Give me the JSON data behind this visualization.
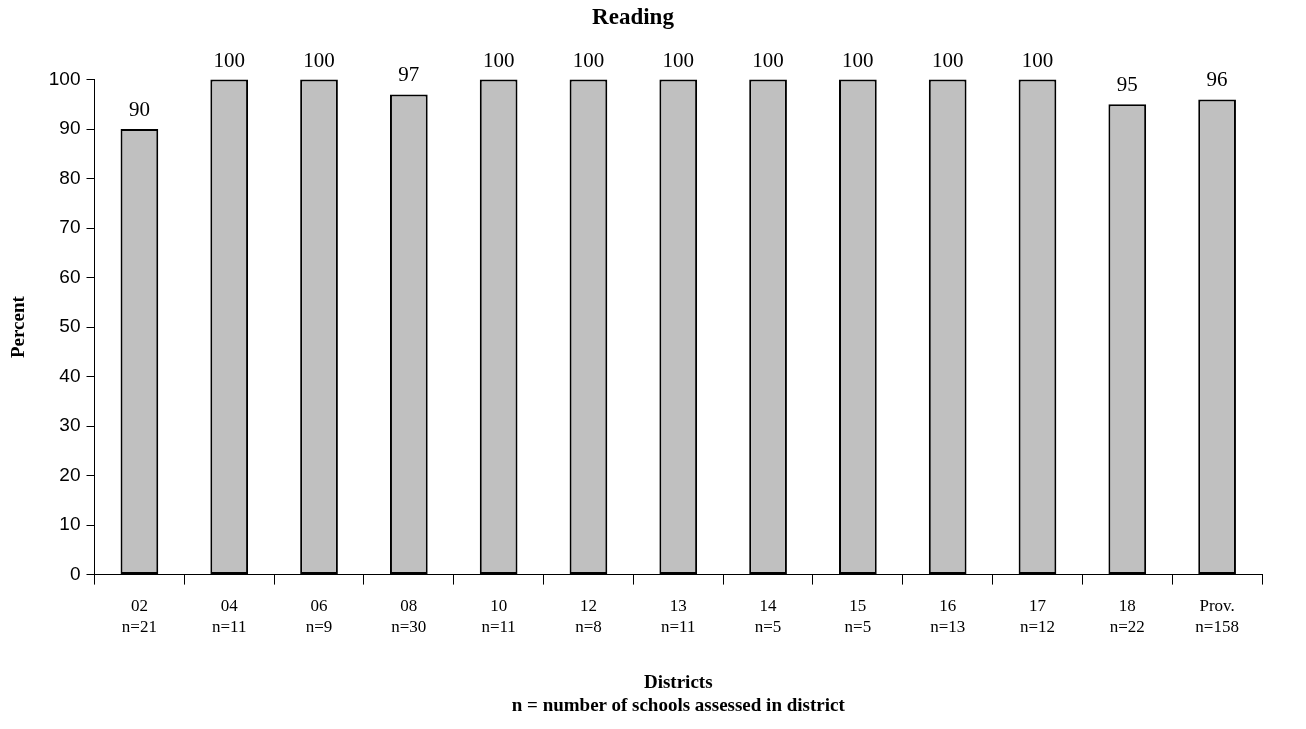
{
  "chart_data": {
    "type": "bar",
    "title": "Reading",
    "xlabel": "Districts",
    "ylabel": "Percent",
    "annotations": [
      "n = number of schools assessed in district"
    ],
    "categories": [
      "02\nn=21",
      "04\nn=11",
      "06\nn=9",
      "08\nn=30",
      "10\nn=11",
      "12\nn=8",
      "13\nn=11",
      "14\nn=5",
      "15\nn=5",
      "16\nn=13",
      "17\nn=12",
      "18\nn=22",
      "Prov.\nn=158"
    ],
    "values": [
      90,
      100,
      100,
      97,
      100,
      100,
      100,
      100,
      100,
      100,
      100,
      95,
      96
    ],
    "color": "#c0c0c0",
    "ylim": [
      0,
      100
    ],
    "yticks": [
      0,
      10,
      20,
      30,
      40,
      50,
      60,
      70,
      80,
      90,
      100
    ],
    "grid": false,
    "legend": false,
    "data_labels": true
  }
}
